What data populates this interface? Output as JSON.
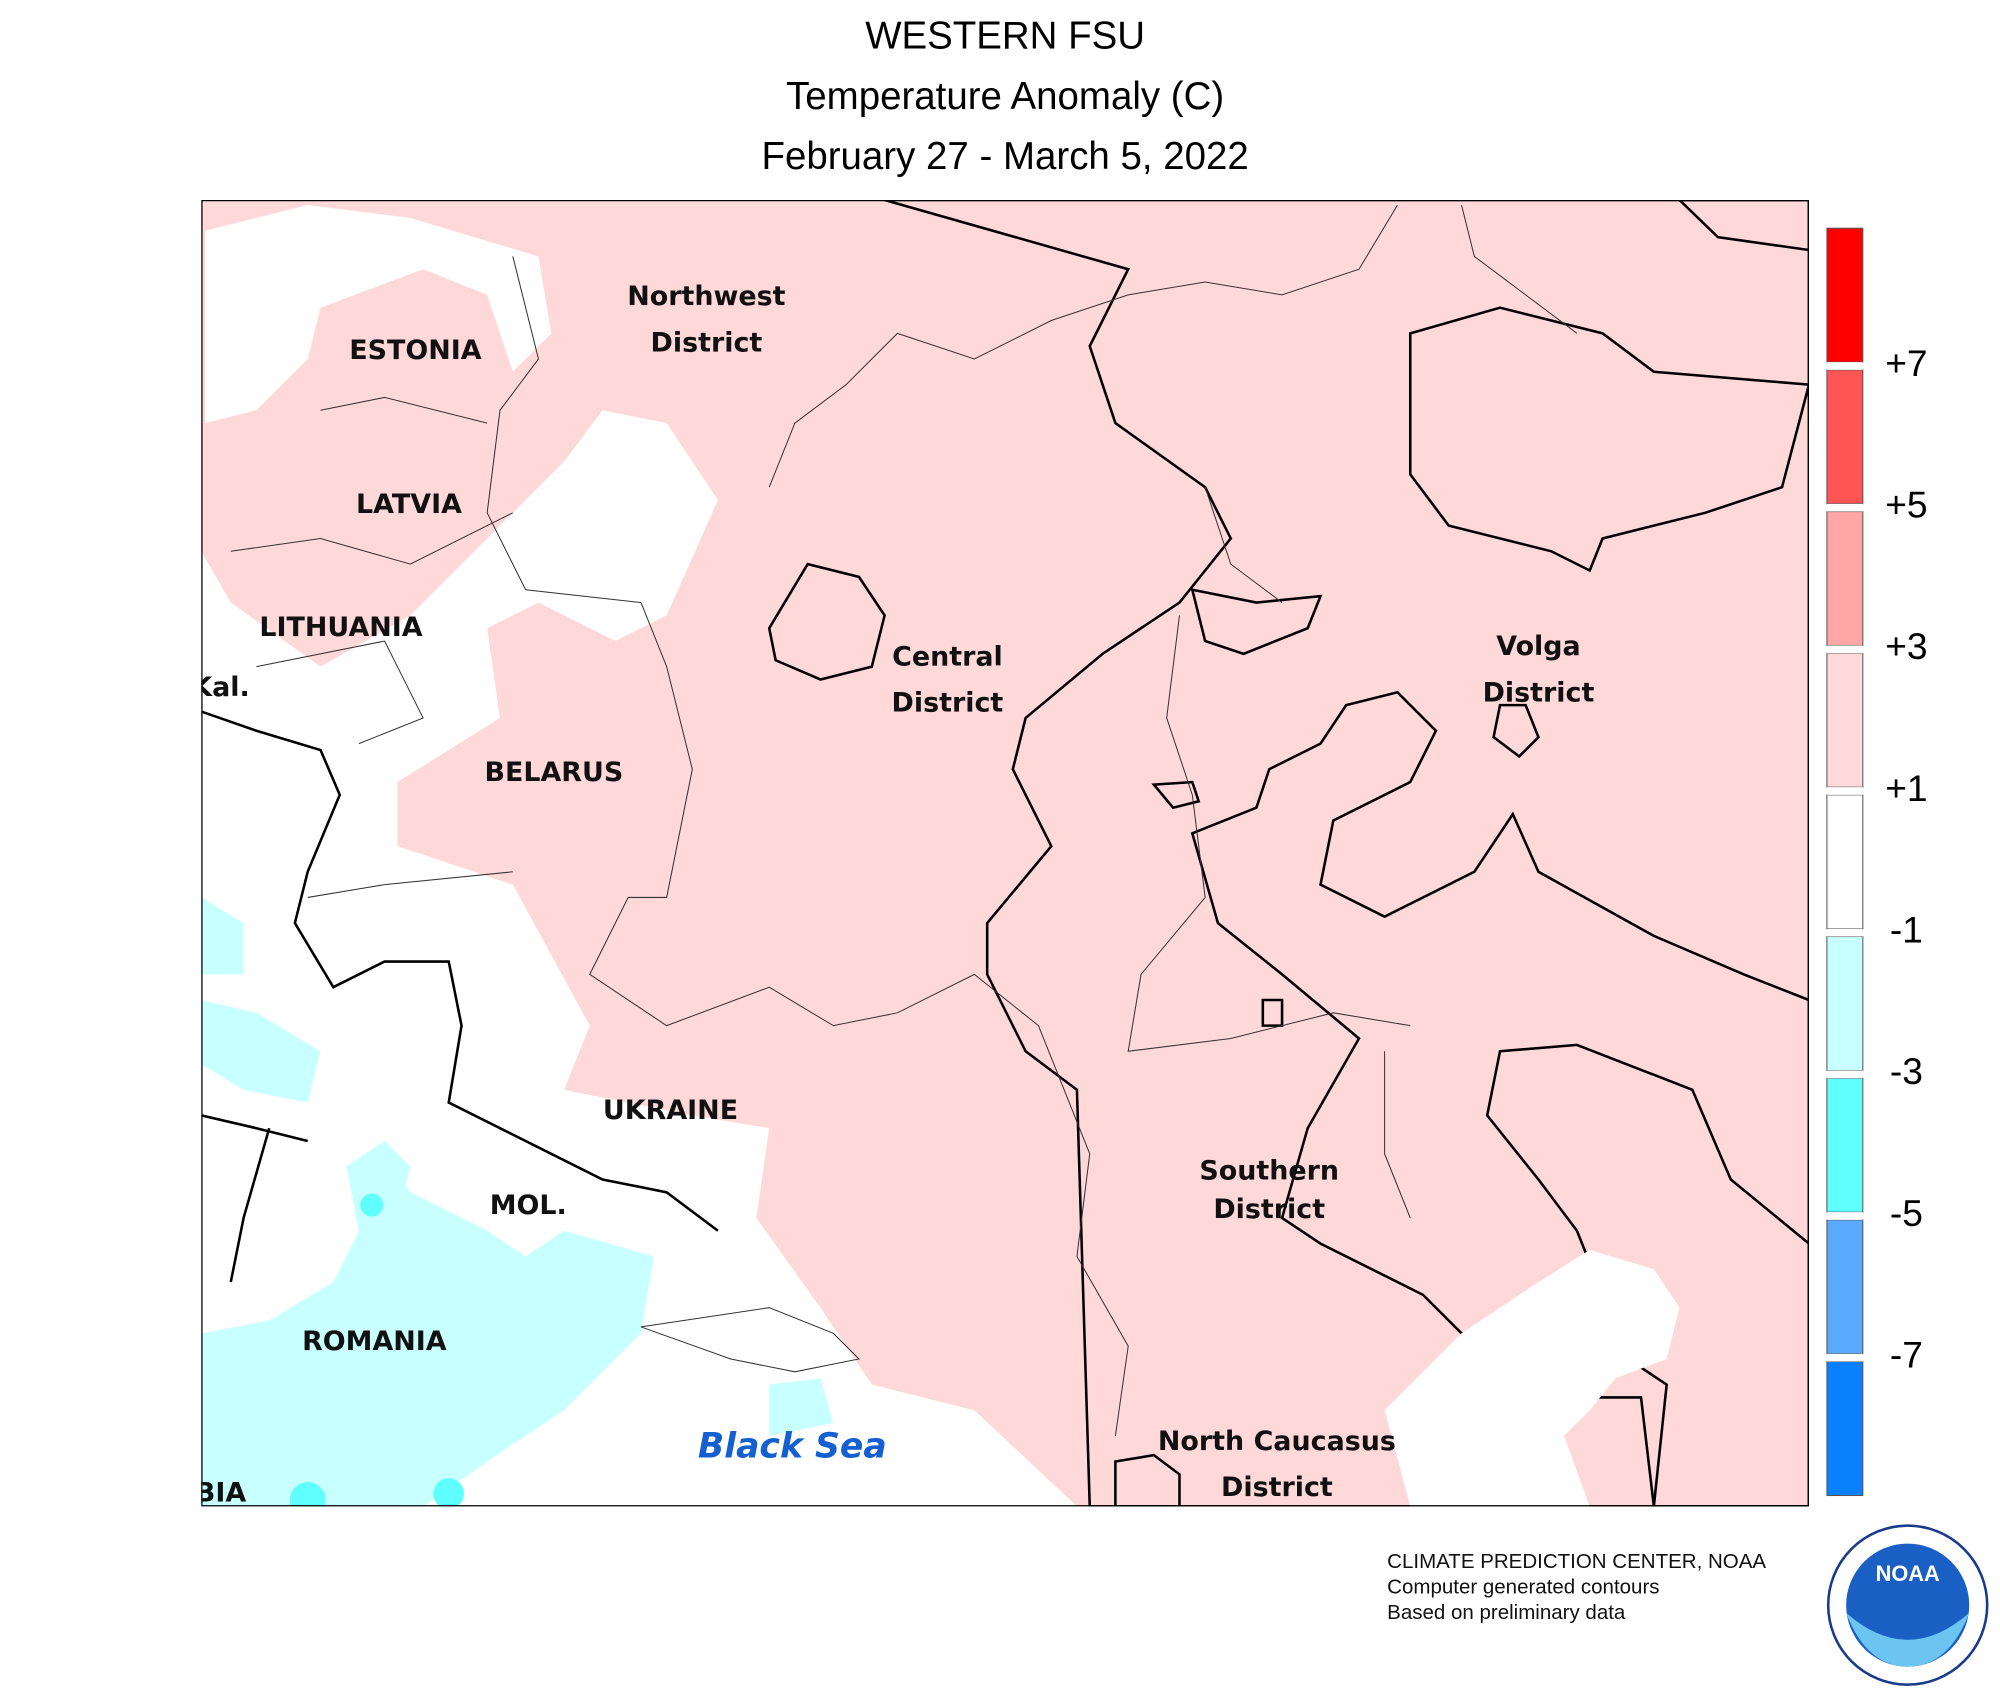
{
  "header": {
    "title": "WESTERN FSU",
    "subtitle": "Temperature Anomaly (C)",
    "dates": "February 27 - March 5, 2022"
  },
  "map": {
    "labels": [
      "ESTONIA",
      "LATVIA",
      "LITHUANIA",
      "Kal.",
      "BELARUS",
      "UKRAINE",
      "MOL.",
      "ROMANIA",
      "BIA",
      "Northwest",
      "District",
      "Central",
      "District",
      "Volga",
      "District",
      "Southern",
      "District",
      "North Caucasus",
      "District"
    ],
    "sea_label": "Black Sea"
  },
  "legend": {
    "colors": [
      "#ff0000",
      "#ff5555",
      "#ffa6a6",
      "#ffd9d9",
      "#ffffff",
      "#c8ffff",
      "#5fffff",
      "#5aaaff",
      "#0a80ff"
    ],
    "ticks": [
      {
        "value": 7,
        "label": "+7"
      },
      {
        "value": 5,
        "label": "+5"
      },
      {
        "value": 3,
        "label": "+3"
      },
      {
        "value": 1,
        "label": "+1"
      },
      -1,
      -3,
      -5,
      -7
    ]
  },
  "credits": [
    "CLIMATE PREDICTION CENTER, NOAA",
    "Computer generated contours",
    "Based on preliminary data"
  ],
  "logo": "NOAA"
}
